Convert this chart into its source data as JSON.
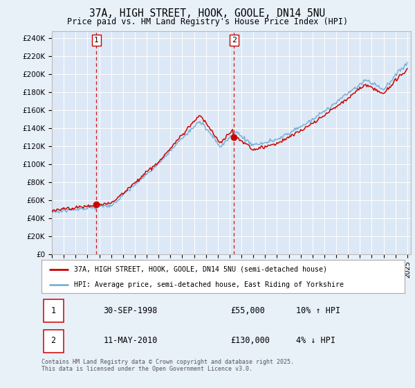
{
  "title": "37A, HIGH STREET, HOOK, GOOLE, DN14 5NU",
  "subtitle": "Price paid vs. HM Land Registry's House Price Index (HPI)",
  "bg_color": "#e8f0f8",
  "plot_bg_color": "#dce8f5",
  "grid_color": "#ffffff",
  "y_ticks": [
    0,
    20000,
    40000,
    60000,
    80000,
    100000,
    120000,
    140000,
    160000,
    180000,
    200000,
    220000,
    240000
  ],
  "y_tick_labels": [
    "£0",
    "£20K",
    "£40K",
    "£60K",
    "£80K",
    "£100K",
    "£120K",
    "£140K",
    "£160K",
    "£180K",
    "£200K",
    "£220K",
    "£240K"
  ],
  "x_start_year": 1995,
  "x_end_year": 2025,
  "sale1_date": 1998.75,
  "sale1_price": 55000,
  "sale2_date": 2010.37,
  "sale2_price": 130000,
  "red_line_color": "#cc0000",
  "blue_line_color": "#7ab0d4",
  "dashed_line_color": "#cc0000",
  "legend1_text": "37A, HIGH STREET, HOOK, GOOLE, DN14 5NU (semi-detached house)",
  "legend2_text": "HPI: Average price, semi-detached house, East Riding of Yorkshire",
  "footnote": "Contains HM Land Registry data © Crown copyright and database right 2025.\nThis data is licensed under the Open Government Licence v3.0."
}
